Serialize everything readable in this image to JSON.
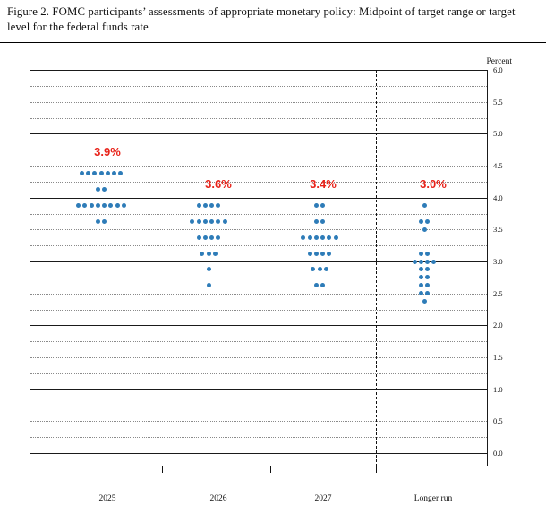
{
  "figure": {
    "title": "Figure 2.  FOMC participants’ assessments of appropriate monetary policy:  Midpoint of target range or target level for the federal funds rate"
  },
  "chart_data": {
    "type": "scatter",
    "variant": "fomc-dot-plot",
    "title": "FOMC participants’ assessments of appropriate monetary policy",
    "ylabel": "Percent",
    "ylim": [
      0.0,
      6.0
    ],
    "ytick_step": 0.5,
    "gridlines": {
      "solid_every_percent": 1.0,
      "dotted_every_percent": 0.25
    },
    "categories": [
      "2025",
      "2026",
      "2027",
      "Longer run"
    ],
    "separator_before": "Longer run",
    "dot_color": "#2e7cb8",
    "median_color": "#e8231a",
    "columns": [
      {
        "category": "2025",
        "median_label": "3.9%",
        "dots": [
          {
            "rate": 4.375,
            "count": 7
          },
          {
            "rate": 4.125,
            "count": 2
          },
          {
            "rate": 3.875,
            "count": 8
          },
          {
            "rate": 3.625,
            "count": 2
          }
        ]
      },
      {
        "category": "2026",
        "median_label": "3.6%",
        "dots": [
          {
            "rate": 3.875,
            "count": 4
          },
          {
            "rate": 3.625,
            "count": 6
          },
          {
            "rate": 3.375,
            "count": 4
          },
          {
            "rate": 3.125,
            "count": 3
          },
          {
            "rate": 2.875,
            "count": 1
          },
          {
            "rate": 2.625,
            "count": 1
          }
        ]
      },
      {
        "category": "2027",
        "median_label": "3.4%",
        "dots": [
          {
            "rate": 3.875,
            "count": 2
          },
          {
            "rate": 3.625,
            "count": 2
          },
          {
            "rate": 3.375,
            "count": 6
          },
          {
            "rate": 3.125,
            "count": 4
          },
          {
            "rate": 2.875,
            "count": 3
          },
          {
            "rate": 2.625,
            "count": 2
          }
        ]
      },
      {
        "category": "Longer run",
        "median_label": "3.0%",
        "dots": [
          {
            "rate": 3.875,
            "count": 1
          },
          {
            "rate": 3.625,
            "count": 2
          },
          {
            "rate": 3.5,
            "count": 1
          },
          {
            "rate": 3.125,
            "count": 2
          },
          {
            "rate": 3.0,
            "count": 4
          },
          {
            "rate": 2.875,
            "count": 2
          },
          {
            "rate": 2.75,
            "count": 2
          },
          {
            "rate": 2.625,
            "count": 2
          },
          {
            "rate": 2.5,
            "count": 2
          },
          {
            "rate": 2.375,
            "count": 1
          }
        ]
      }
    ]
  }
}
